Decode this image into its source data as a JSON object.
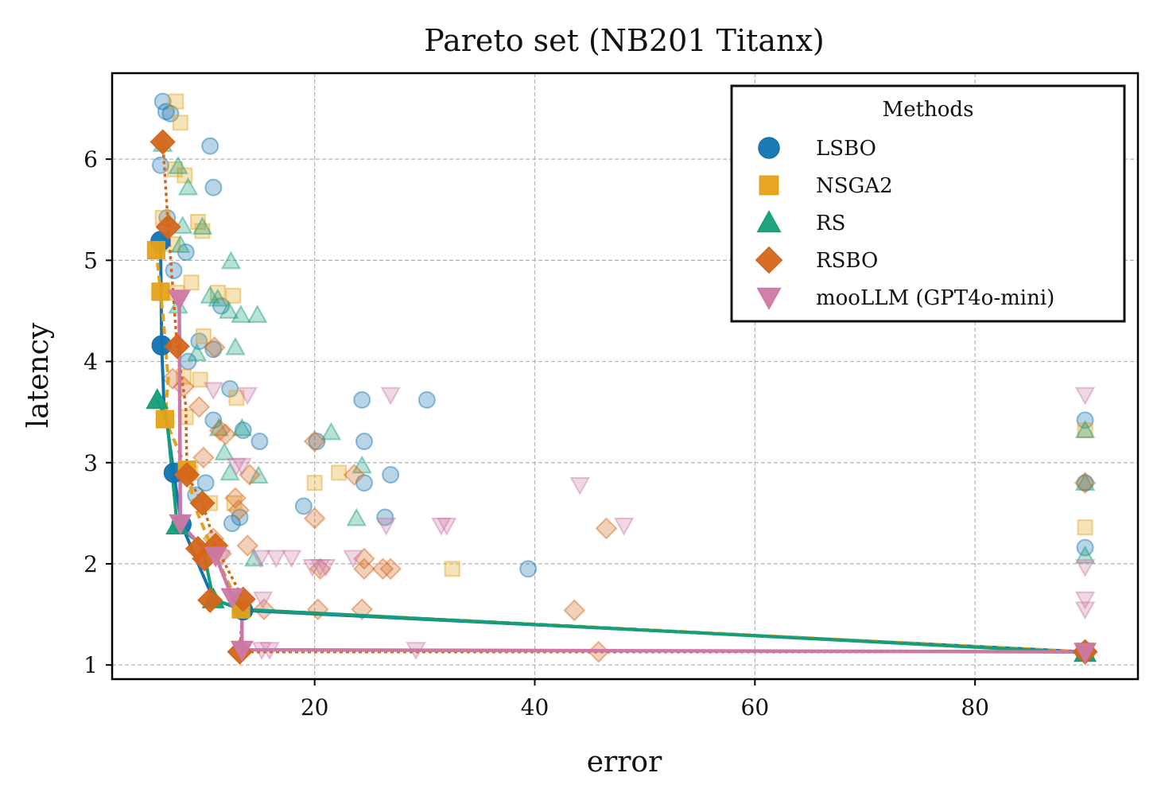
{
  "colors": {
    "LSBO": "#1273b0",
    "NSGA2": "#e5a218",
    "RS": "#149e79",
    "RSBO": "#d4661b",
    "mooLLM (GPT4o-mini)": "#cc79a7",
    "grid": "#b3b3b3",
    "axis": "#000000"
  },
  "chart_data": {
    "type": "scatter",
    "title": "Pareto set (NB201 Titanx)",
    "xlabel": "error",
    "ylabel": "latency",
    "xlim": [
      1.6,
      94.8
    ],
    "ylim": [
      0.86,
      6.85
    ],
    "xticks": [
      20,
      40,
      60,
      80
    ],
    "yticks": [
      1,
      2,
      3,
      4,
      5,
      6
    ],
    "grid": true,
    "legend": {
      "title": "Methods",
      "placement": "top-right",
      "entries": [
        "LSBO",
        "NSGA2",
        "RS",
        "RSBO",
        "mooLLM (GPT4o-mini)"
      ]
    },
    "series": [
      {
        "name": "LSBO",
        "marker": "circle",
        "points": [
          [
            6.2,
            6.57
          ],
          [
            6.5,
            6.47
          ],
          [
            6.9,
            6.45
          ],
          [
            10.5,
            6.13
          ],
          [
            10.8,
            5.72
          ],
          [
            6.0,
            5.94
          ],
          [
            6.6,
            5.42
          ],
          [
            8.3,
            5.08
          ],
          [
            7.2,
            4.9
          ],
          [
            11.5,
            4.55
          ],
          [
            9.5,
            4.2
          ],
          [
            10.8,
            4.12
          ],
          [
            8.5,
            4.0
          ],
          [
            12.3,
            3.73
          ],
          [
            10.8,
            3.42
          ],
          [
            13.5,
            3.32
          ],
          [
            15.0,
            3.21
          ],
          [
            24.3,
            3.62
          ],
          [
            30.2,
            3.62
          ],
          [
            24.5,
            3.21
          ],
          [
            20.2,
            3.21
          ],
          [
            24.5,
            2.8
          ],
          [
            26.9,
            2.88
          ],
          [
            19.0,
            2.57
          ],
          [
            26.4,
            2.46
          ],
          [
            13.2,
            2.46
          ],
          [
            12.5,
            2.4
          ],
          [
            10.1,
            2.8
          ],
          [
            9.2,
            2.68
          ],
          [
            39.4,
            1.95
          ],
          [
            90.0,
            3.42
          ],
          [
            90.0,
            2.8
          ],
          [
            90.0,
            2.16
          ]
        ],
        "pareto": [
          [
            6.0,
            5.19
          ],
          [
            6.1,
            4.16
          ],
          [
            6.3,
            3.6
          ],
          [
            7.2,
            2.9
          ],
          [
            7.9,
            2.39
          ],
          [
            10.8,
            1.65
          ],
          [
            13.5,
            1.54
          ],
          [
            90.0,
            1.13
          ]
        ],
        "pareto_points": [
          [
            6.0,
            5.19
          ],
          [
            6.1,
            4.16
          ],
          [
            7.2,
            2.9
          ],
          [
            7.9,
            2.39
          ],
          [
            13.5,
            1.54
          ],
          [
            90.0,
            1.13
          ]
        ]
      },
      {
        "name": "NSGA2",
        "marker": "square",
        "points": [
          [
            7.4,
            6.57
          ],
          [
            7.8,
            6.36
          ],
          [
            8.2,
            5.84
          ],
          [
            7.3,
            5.9
          ],
          [
            6.2,
            5.42
          ],
          [
            7.1,
            5.16
          ],
          [
            9.4,
            5.38
          ],
          [
            9.8,
            5.29
          ],
          [
            11.2,
            4.68
          ],
          [
            12.6,
            4.65
          ],
          [
            7.5,
            4.68
          ],
          [
            8.8,
            4.78
          ],
          [
            9.9,
            4.25
          ],
          [
            8.1,
            3.85
          ],
          [
            9.6,
            3.82
          ],
          [
            12.9,
            3.64
          ],
          [
            8.3,
            3.45
          ],
          [
            8.7,
            2.9
          ],
          [
            10.5,
            2.6
          ],
          [
            12.7,
            2.6
          ],
          [
            20.0,
            2.8
          ],
          [
            22.2,
            2.9
          ],
          [
            32.5,
            1.95
          ],
          [
            90.0,
            3.32
          ],
          [
            90.0,
            2.36
          ]
        ],
        "pareto": [
          [
            5.6,
            5.1
          ],
          [
            6.0,
            4.69
          ],
          [
            6.3,
            4.35
          ],
          [
            6.7,
            3.82
          ],
          [
            6.4,
            3.43
          ],
          [
            8.4,
            2.93
          ],
          [
            9.1,
            2.57
          ],
          [
            10.5,
            2.2
          ],
          [
            13.3,
            1.55
          ],
          [
            90.0,
            1.13
          ]
        ],
        "pareto_points": [
          [
            5.6,
            5.1
          ],
          [
            6.0,
            4.69
          ],
          [
            6.4,
            3.43
          ],
          [
            8.4,
            2.93
          ],
          [
            13.3,
            1.55
          ],
          [
            90.0,
            1.13
          ]
        ]
      },
      {
        "name": "RS",
        "marker": "triangle-up",
        "points": [
          [
            6.2,
            6.15
          ],
          [
            7.6,
            5.93
          ],
          [
            8.5,
            5.72
          ],
          [
            8.0,
            5.34
          ],
          [
            7.8,
            5.15
          ],
          [
            9.8,
            5.33
          ],
          [
            12.4,
            4.99
          ],
          [
            7.6,
            4.55
          ],
          [
            10.5,
            4.65
          ],
          [
            11.2,
            4.62
          ],
          [
            12.2,
            4.5
          ],
          [
            13.3,
            4.46
          ],
          [
            14.8,
            4.46
          ],
          [
            9.3,
            4.08
          ],
          [
            12.8,
            4.14
          ],
          [
            11.3,
            3.34
          ],
          [
            13.4,
            3.34
          ],
          [
            21.5,
            3.3
          ],
          [
            11.8,
            3.1
          ],
          [
            12.3,
            2.9
          ],
          [
            14.9,
            2.87
          ],
          [
            24.3,
            2.97
          ],
          [
            23.8,
            2.45
          ],
          [
            14.5,
            2.05
          ],
          [
            90.0,
            3.32
          ],
          [
            90.0,
            2.8
          ],
          [
            90.0,
            2.08
          ]
        ],
        "pareto": [
          [
            5.7,
            3.62
          ],
          [
            6.6,
            3.41
          ],
          [
            7.5,
            2.38
          ],
          [
            9.8,
            2.18
          ],
          [
            10.8,
            1.65
          ],
          [
            13.4,
            1.55
          ],
          [
            90.0,
            1.12
          ]
        ],
        "pareto_points": [
          [
            5.7,
            3.62
          ],
          [
            7.5,
            2.38
          ],
          [
            10.8,
            1.65
          ],
          [
            90.0,
            1.12
          ]
        ]
      },
      {
        "name": "RSBO",
        "marker": "diamond",
        "points": [
          [
            7.1,
            3.83
          ],
          [
            8.1,
            3.75
          ],
          [
            9.5,
            3.55
          ],
          [
            9.9,
            3.05
          ],
          [
            10.9,
            4.14
          ],
          [
            11.4,
            3.32
          ],
          [
            11.9,
            3.28
          ],
          [
            12.8,
            2.65
          ],
          [
            13.1,
            2.53
          ],
          [
            14.1,
            2.88
          ],
          [
            10.8,
            2.25
          ],
          [
            11.5,
            2.1
          ],
          [
            13.9,
            2.18
          ],
          [
            15.4,
            1.55
          ],
          [
            20.0,
            3.21
          ],
          [
            20.0,
            2.45
          ],
          [
            20.3,
            1.55
          ],
          [
            23.6,
            2.88
          ],
          [
            24.5,
            2.05
          ],
          [
            24.5,
            1.95
          ],
          [
            24.3,
            1.55
          ],
          [
            26.2,
            1.95
          ],
          [
            26.9,
            1.95
          ],
          [
            20.5,
            1.95
          ],
          [
            43.6,
            1.54
          ],
          [
            46.5,
            2.35
          ],
          [
            45.8,
            1.13
          ],
          [
            90.0,
            2.8
          ],
          [
            90.0,
            1.13
          ]
        ],
        "pareto": [
          [
            6.2,
            6.17
          ],
          [
            6.7,
            5.33
          ],
          [
            7.5,
            4.15
          ],
          [
            8.3,
            3.56
          ],
          [
            8.4,
            2.88
          ],
          [
            9.8,
            2.6
          ],
          [
            11.0,
            2.18
          ],
          [
            13.5,
            1.65
          ],
          [
            13.2,
            1.13
          ],
          [
            90.0,
            1.13
          ]
        ],
        "pareto_points": [
          [
            6.2,
            6.17
          ],
          [
            6.7,
            5.33
          ],
          [
            7.5,
            4.15
          ],
          [
            8.4,
            2.88
          ],
          [
            9.8,
            2.6
          ],
          [
            9.4,
            2.15
          ],
          [
            10.0,
            2.05
          ],
          [
            11.0,
            2.18
          ],
          [
            10.5,
            1.64
          ],
          [
            13.5,
            1.65
          ],
          [
            13.2,
            1.13
          ],
          [
            90.0,
            1.13
          ]
        ]
      },
      {
        "name": "mooLLM (GPT4o-mini)",
        "marker": "triangle-down",
        "points": [
          [
            10.8,
            3.72
          ],
          [
            13.9,
            3.67
          ],
          [
            26.9,
            3.67
          ],
          [
            12.9,
            2.97
          ],
          [
            13.4,
            2.97
          ],
          [
            44.1,
            2.78
          ],
          [
            26.5,
            2.38
          ],
          [
            31.5,
            2.38
          ],
          [
            32.0,
            2.38
          ],
          [
            48.1,
            2.38
          ],
          [
            11.5,
            2.06
          ],
          [
            15.1,
            2.06
          ],
          [
            16.5,
            2.06
          ],
          [
            17.9,
            2.06
          ],
          [
            23.5,
            2.06
          ],
          [
            19.8,
            1.97
          ],
          [
            20.5,
            1.97
          ],
          [
            21.0,
            1.97
          ],
          [
            15.3,
            1.65
          ],
          [
            15.2,
            1.15
          ],
          [
            15.9,
            1.15
          ],
          [
            29.2,
            1.15
          ],
          [
            90.0,
            3.67
          ],
          [
            90.0,
            1.97
          ],
          [
            90.0,
            1.65
          ],
          [
            90.0,
            1.55
          ]
        ],
        "pareto": [
          [
            7.7,
            4.62
          ],
          [
            7.8,
            2.4
          ],
          [
            9.5,
            2.2
          ],
          [
            11.0,
            2.08
          ],
          [
            12.5,
            1.67
          ],
          [
            13.4,
            1.55
          ],
          [
            13.4,
            1.15
          ],
          [
            90.0,
            1.13
          ]
        ],
        "pareto_points": [
          [
            7.7,
            4.62
          ],
          [
            7.8,
            2.4
          ],
          [
            11.0,
            2.08
          ],
          [
            12.5,
            1.67
          ],
          [
            13.4,
            1.15
          ],
          [
            90.0,
            1.13
          ]
        ]
      }
    ]
  }
}
